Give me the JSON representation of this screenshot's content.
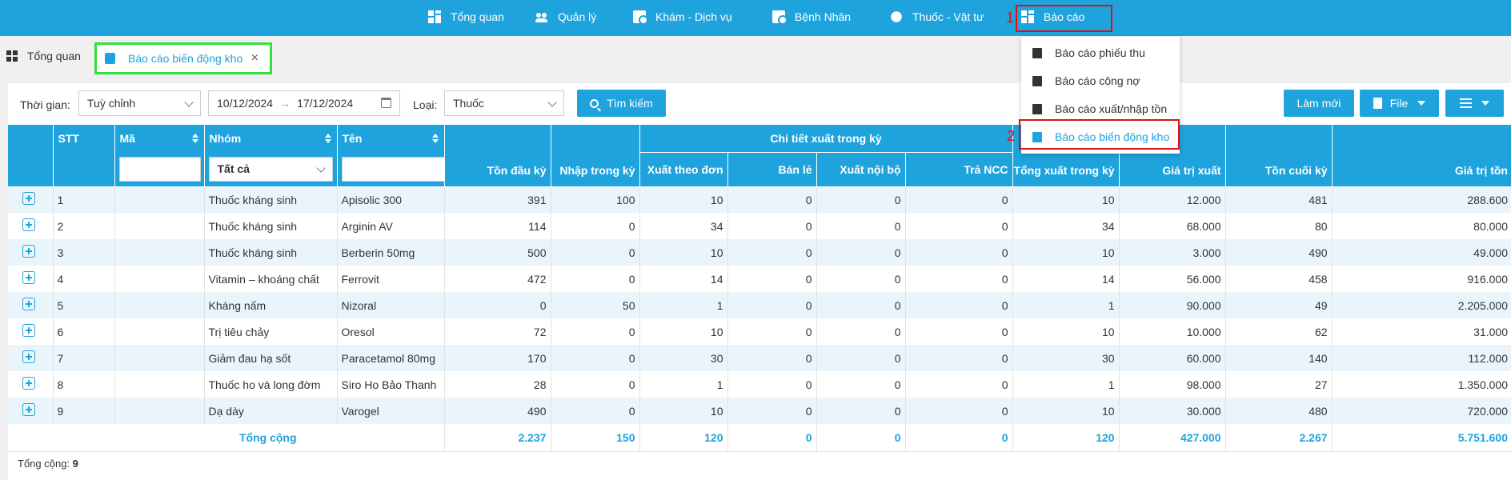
{
  "nav": {
    "items": [
      {
        "label": "Tổng quan",
        "icon": "dashboard-icon"
      },
      {
        "label": "Quản lý",
        "icon": "users-icon"
      },
      {
        "label": "Khám - Dịch vụ",
        "icon": "doctor-icon"
      },
      {
        "label": "Bệnh Nhân",
        "icon": "patient-icon"
      },
      {
        "label": "Thuốc - Vật tư",
        "icon": "pills-icon"
      },
      {
        "label": "Báo cáo",
        "icon": "report-icon"
      }
    ],
    "marker1": "1",
    "marker2": "2"
  },
  "report_menu": [
    {
      "label": "Báo cáo phiếu thu"
    },
    {
      "label": "Báo cáo công nợ"
    },
    {
      "label": "Báo cáo xuất/nhập tồn"
    },
    {
      "label": "Báo cáo biến động kho"
    }
  ],
  "tabs": {
    "home": "Tổng quan",
    "active": "Báo cáo biến động kho",
    "close": "×"
  },
  "filters": {
    "time_label": "Thời gian:",
    "time_value": "Tuỳ chỉnh",
    "date_from": "10/12/2024",
    "date_arrow": "→",
    "date_to": "17/12/2024",
    "type_label": "Loại:",
    "type_value": "Thuốc",
    "search_btn": "Tìm kiếm",
    "refresh_btn": "Làm mới",
    "file_btn": "File"
  },
  "table": {
    "headers": {
      "stt": "STT",
      "ma": "Mã",
      "nhom": "Nhóm",
      "nhom_filter": "Tất cả",
      "ten": "Tên",
      "ton_dau": "Tồn đầu kỳ",
      "nhap": "Nhập trong kỳ",
      "group": "Chi tiết xuất trong kỳ",
      "xuat_don": "Xuất theo đơn",
      "ban_le": "Bán lẻ",
      "xuat_noi_bo": "Xuất nội bộ",
      "tra_ncc": "Trả NCC",
      "tong_xuat": "Tổng xuất trong kỳ",
      "gia_tri_xuat": "Giá trị xuất",
      "ton_cuoi": "Tồn cuối kỳ",
      "gia_tri_ton": "Giá trị tồn"
    },
    "rows": [
      {
        "stt": "1",
        "ma": "",
        "nhom": "Thuốc kháng sinh",
        "ten": "Apisolic 300",
        "ton_dau": "391",
        "nhap": "100",
        "xuat_don": "10",
        "ban_le": "0",
        "noi_bo": "0",
        "tra_ncc": "0",
        "tong_xuat": "10",
        "gia_tri_xuat": "12.000",
        "ton_cuoi": "481",
        "gia_tri_ton": "288.600"
      },
      {
        "stt": "2",
        "ma": "",
        "nhom": "Thuốc kháng sinh",
        "ten": "Arginin AV",
        "ton_dau": "114",
        "nhap": "0",
        "xuat_don": "34",
        "ban_le": "0",
        "noi_bo": "0",
        "tra_ncc": "0",
        "tong_xuat": "34",
        "gia_tri_xuat": "68.000",
        "ton_cuoi": "80",
        "gia_tri_ton": "80.000"
      },
      {
        "stt": "3",
        "ma": "",
        "nhom": "Thuốc kháng sinh",
        "ten": "Berberin 50mg",
        "ton_dau": "500",
        "nhap": "0",
        "xuat_don": "10",
        "ban_le": "0",
        "noi_bo": "0",
        "tra_ncc": "0",
        "tong_xuat": "10",
        "gia_tri_xuat": "3.000",
        "ton_cuoi": "490",
        "gia_tri_ton": "49.000"
      },
      {
        "stt": "4",
        "ma": "",
        "nhom": "Vitamin – khoáng chất",
        "ten": "Ferrovit",
        "ton_dau": "472",
        "nhap": "0",
        "xuat_don": "14",
        "ban_le": "0",
        "noi_bo": "0",
        "tra_ncc": "0",
        "tong_xuat": "14",
        "gia_tri_xuat": "56.000",
        "ton_cuoi": "458",
        "gia_tri_ton": "916.000"
      },
      {
        "stt": "5",
        "ma": "",
        "nhom": "Kháng nấm",
        "ten": "Nizoral",
        "ton_dau": "0",
        "nhap": "50",
        "xuat_don": "1",
        "ban_le": "0",
        "noi_bo": "0",
        "tra_ncc": "0",
        "tong_xuat": "1",
        "gia_tri_xuat": "90.000",
        "ton_cuoi": "49",
        "gia_tri_ton": "2.205.000"
      },
      {
        "stt": "6",
        "ma": "",
        "nhom": "Trị tiêu chảy",
        "ten": "Oresol",
        "ton_dau": "72",
        "nhap": "0",
        "xuat_don": "10",
        "ban_le": "0",
        "noi_bo": "0",
        "tra_ncc": "0",
        "tong_xuat": "10",
        "gia_tri_xuat": "10.000",
        "ton_cuoi": "62",
        "gia_tri_ton": "31.000"
      },
      {
        "stt": "7",
        "ma": "",
        "nhom": "Giảm đau hạ sốt",
        "ten": "Paracetamol 80mg",
        "ton_dau": "170",
        "nhap": "0",
        "xuat_don": "30",
        "ban_le": "0",
        "noi_bo": "0",
        "tra_ncc": "0",
        "tong_xuat": "30",
        "gia_tri_xuat": "60.000",
        "ton_cuoi": "140",
        "gia_tri_ton": "112.000"
      },
      {
        "stt": "8",
        "ma": "",
        "nhom": "Thuốc ho và long đờm",
        "ten": "Siro Ho Bảo Thanh",
        "ton_dau": "28",
        "nhap": "0",
        "xuat_don": "1",
        "ban_le": "0",
        "noi_bo": "0",
        "tra_ncc": "0",
        "tong_xuat": "1",
        "gia_tri_xuat": "98.000",
        "ton_cuoi": "27",
        "gia_tri_ton": "1.350.000"
      },
      {
        "stt": "9",
        "ma": "",
        "nhom": "Dạ dày",
        "ten": "Varogel",
        "ton_dau": "490",
        "nhap": "0",
        "xuat_don": "10",
        "ban_le": "0",
        "noi_bo": "0",
        "tra_ncc": "0",
        "tong_xuat": "10",
        "gia_tri_xuat": "30.000",
        "ton_cuoi": "480",
        "gia_tri_ton": "720.000"
      }
    ],
    "total": {
      "label": "Tổng cộng",
      "ton_dau": "2.237",
      "nhap": "150",
      "xuat_don": "120",
      "ban_le": "0",
      "noi_bo": "0",
      "tra_ncc": "0",
      "tong_xuat": "120",
      "gia_tri_xuat": "427.000",
      "ton_cuoi": "2.267",
      "gia_tri_ton": "5.751.600"
    }
  },
  "footer": {
    "label": "Tổng cộng:",
    "count": "9"
  },
  "colors": {
    "primary": "#1fa3dc",
    "highlight_red": "#dd1111",
    "highlight_green": "#32e03a"
  }
}
